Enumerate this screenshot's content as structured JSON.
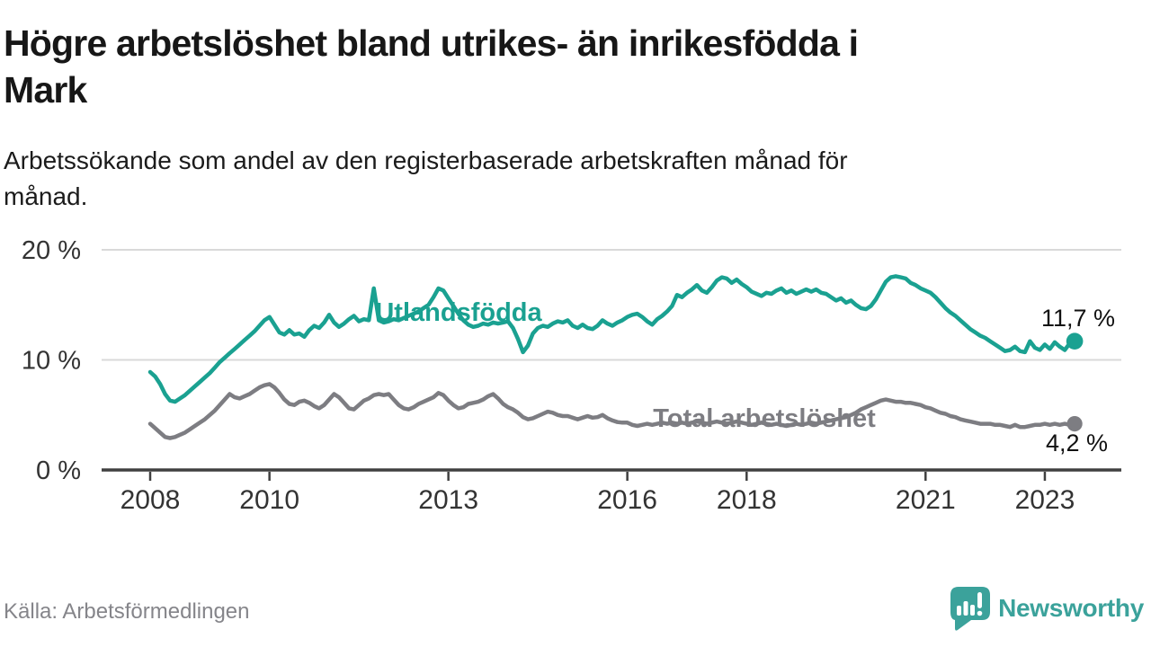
{
  "page": {
    "background": "#ffffff"
  },
  "header": {
    "title": "Högre arbetslöshet bland utrikes- än inrikesfödda i Mark",
    "title_lines": [
      "Högre arbetslöshet bland utrikes- än inrikesfödda i",
      "Mark"
    ],
    "subtitle": "Arbetssökande som andel av den registerbaserade arbetskraften månad för månad.",
    "subtitle_lines": [
      "Arbetssökande som andel av den registerbaserade arbetskraften månad för",
      "månad."
    ]
  },
  "footer": {
    "source": "Källa: Arbetsförmedlingen",
    "brand": {
      "name": "Newsworthy",
      "icon": "newsworthy-bar-chart-speech-bubble-icon",
      "color": "#3ba29b"
    }
  },
  "colors": {
    "accent_teal": "#1aa191",
    "series_gray": "#7d7d82",
    "grid": "#d9d9d9",
    "axis": "#404040",
    "title_text": "#171717",
    "axis_text": "#333333",
    "source_text": "#85858a"
  },
  "chart_data": {
    "type": "line",
    "frequency": "monthly",
    "title": "Högre arbetslöshet bland utrikes- än inrikesfödda i Mark",
    "xlabel": "",
    "ylabel": "",
    "x_axis": {
      "ticks": [
        2008,
        2010,
        2013,
        2016,
        2018,
        2021,
        2023
      ],
      "range": [
        2008,
        2024.3
      ]
    },
    "y_axis": {
      "unit": "%",
      "tick_values": [
        0,
        10,
        20
      ],
      "tick_labels": [
        "0 %",
        "10 %",
        "20 %"
      ],
      "gridline_values": [
        10,
        20
      ],
      "range": [
        0,
        20
      ]
    },
    "legend_position": "inline-labels",
    "series": [
      {
        "name": "Utlandsfödda",
        "color": "#1aa191",
        "start": "2008-01",
        "end": "2023-07",
        "end_label": "11,7 %",
        "last_value": 11.7,
        "values": [
          8.9,
          8.5,
          7.8,
          6.9,
          6.3,
          6.2,
          6.5,
          6.8,
          7.2,
          7.6,
          8.0,
          8.4,
          8.8,
          9.3,
          9.8,
          10.2,
          10.6,
          11.0,
          11.4,
          11.8,
          12.2,
          12.6,
          13.1,
          13.6,
          13.9,
          13.2,
          12.5,
          12.3,
          12.7,
          12.3,
          12.4,
          12.1,
          12.7,
          13.1,
          12.9,
          13.4,
          14.1,
          13.4,
          13.0,
          13.3,
          13.7,
          14.0,
          13.5,
          13.7,
          13.6,
          16.5,
          13.6,
          13.4,
          13.5,
          13.7,
          13.6,
          13.8,
          14.0,
          14.2,
          14.4,
          14.7,
          15.0,
          15.7,
          16.5,
          16.3,
          15.6,
          14.9,
          14.2,
          13.6,
          13.2,
          13.0,
          13.1,
          13.3,
          13.2,
          13.4,
          13.3,
          13.4,
          13.5,
          12.9,
          11.9,
          10.7,
          11.3,
          12.4,
          12.9,
          13.1,
          13.0,
          13.3,
          13.5,
          13.4,
          13.6,
          13.1,
          12.9,
          13.2,
          12.9,
          12.8,
          13.1,
          13.6,
          13.3,
          13.1,
          13.4,
          13.6,
          13.9,
          14.1,
          14.2,
          13.9,
          13.5,
          13.2,
          13.7,
          14.0,
          14.4,
          14.9,
          15.9,
          15.7,
          16.1,
          16.4,
          16.8,
          16.3,
          16.1,
          16.6,
          17.2,
          17.5,
          17.4,
          17.0,
          17.3,
          16.9,
          16.6,
          16.2,
          16.0,
          15.8,
          16.1,
          16.0,
          16.3,
          16.5,
          16.1,
          16.3,
          16.0,
          16.2,
          16.4,
          16.2,
          16.4,
          16.1,
          16.0,
          15.7,
          15.4,
          15.6,
          15.2,
          15.4,
          15.0,
          14.7,
          14.6,
          14.9,
          15.5,
          16.3,
          17.1,
          17.5,
          17.6,
          17.5,
          17.4,
          17.0,
          16.8,
          16.5,
          16.3,
          16.1,
          15.7,
          15.2,
          14.7,
          14.3,
          14.0,
          13.6,
          13.2,
          12.8,
          12.5,
          12.2,
          12.0,
          11.7,
          11.4,
          11.1,
          10.8,
          10.9,
          11.2,
          10.8,
          10.7,
          11.7,
          11.1,
          10.9,
          11.4,
          11.0,
          11.6,
          11.2,
          10.9,
          11.5,
          11.7
        ]
      },
      {
        "name": "Total arbetslöshet",
        "color": "#7d7d82",
        "start": "2008-01",
        "end": "2023-07",
        "end_label": "4,2 %",
        "last_value": 4.2,
        "values": [
          4.2,
          3.8,
          3.4,
          3.0,
          2.9,
          3.0,
          3.2,
          3.4,
          3.7,
          4.0,
          4.3,
          4.6,
          5.0,
          5.4,
          5.9,
          6.4,
          6.9,
          6.6,
          6.5,
          6.7,
          6.9,
          7.2,
          7.5,
          7.7,
          7.8,
          7.5,
          7.0,
          6.4,
          6.0,
          5.9,
          6.2,
          6.3,
          6.1,
          5.8,
          5.6,
          5.9,
          6.4,
          6.9,
          6.6,
          6.1,
          5.6,
          5.5,
          5.9,
          6.3,
          6.5,
          6.8,
          6.9,
          6.8,
          6.9,
          6.4,
          5.9,
          5.6,
          5.5,
          5.7,
          6.0,
          6.2,
          6.4,
          6.6,
          7.0,
          6.8,
          6.3,
          5.9,
          5.6,
          5.7,
          6.0,
          6.1,
          6.2,
          6.4,
          6.7,
          6.9,
          6.5,
          6.0,
          5.7,
          5.5,
          5.2,
          4.8,
          4.6,
          4.7,
          4.9,
          5.1,
          5.3,
          5.2,
          5.0,
          4.9,
          4.9,
          4.75,
          4.6,
          4.75,
          4.9,
          4.75,
          4.8,
          5.0,
          4.7,
          4.5,
          4.35,
          4.3,
          4.3,
          4.1,
          4.0,
          4.1,
          4.2,
          4.1,
          4.2,
          4.3,
          4.2,
          4.3,
          4.2,
          4.3,
          4.2,
          4.3,
          4.4,
          4.3,
          4.2,
          4.3,
          4.4,
          4.3,
          4.2,
          4.3,
          4.4,
          4.3,
          4.2,
          4.1,
          4.2,
          4.3,
          4.2,
          4.1,
          4.2,
          4.1,
          4.0,
          4.1,
          4.2,
          4.1,
          4.2,
          4.3,
          4.2,
          4.3,
          4.4,
          4.5,
          4.6,
          4.7,
          4.8,
          5.0,
          5.2,
          5.5,
          5.7,
          5.9,
          6.1,
          6.3,
          6.4,
          6.3,
          6.2,
          6.2,
          6.1,
          6.1,
          6.0,
          5.9,
          5.7,
          5.6,
          5.4,
          5.2,
          5.1,
          4.9,
          4.8,
          4.6,
          4.5,
          4.4,
          4.3,
          4.2,
          4.2,
          4.2,
          4.1,
          4.1,
          4.0,
          3.9,
          4.1,
          3.9,
          3.9,
          4.0,
          4.1,
          4.1,
          4.2,
          4.1,
          4.2,
          4.1,
          4.2,
          4.1,
          4.2
        ]
      }
    ]
  }
}
